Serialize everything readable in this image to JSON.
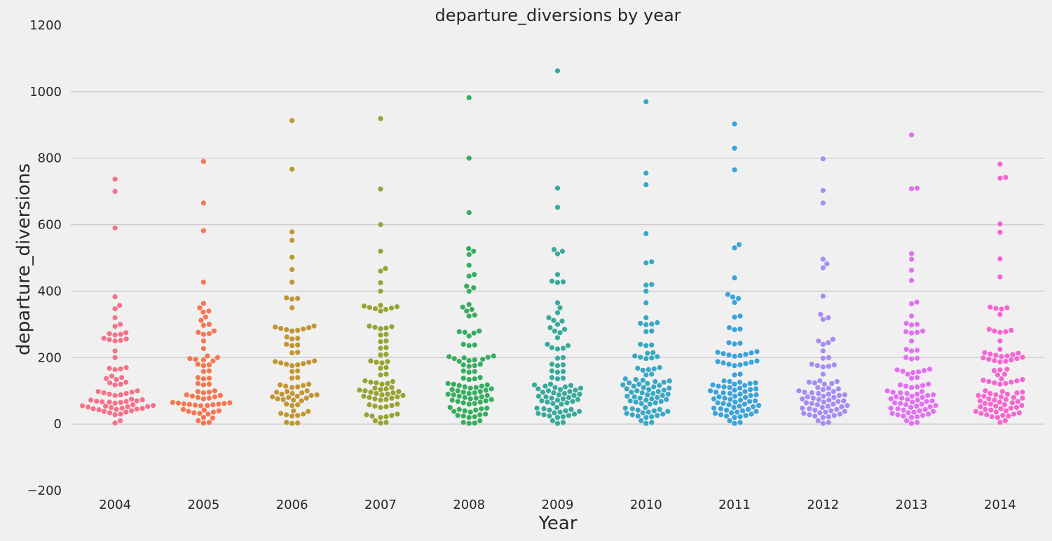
{
  "chart_data": {
    "type": "scatter",
    "subtype": "swarm",
    "title": "departure_diversions by year",
    "xlabel": "Year",
    "ylabel": "departure_diversions",
    "ylim": [
      -200,
      1200
    ],
    "yticks": [
      "−200",
      "0",
      "200",
      "400",
      "600",
      "800",
      "1000",
      "1200"
    ],
    "grid": true,
    "categories": [
      "2004",
      "2005",
      "2006",
      "2007",
      "2008",
      "2009",
      "2010",
      "2011",
      "2012",
      "2013",
      "2014"
    ],
    "colors": [
      "#f77189",
      "#f7754f",
      "#c39532",
      "#97a431",
      "#36ad5f",
      "#37aa9a",
      "#38a7c5",
      "#3aa2dc",
      "#a48cf4",
      "#e36ff4",
      "#f666d0"
    ],
    "series": [
      {
        "name": "2004",
        "values": [
          737,
          700,
          590,
          383,
          357,
          347,
          320,
          300,
          294,
          275,
          272,
          270,
          268,
          258,
          256,
          254,
          252,
          250,
          220,
          200,
          170,
          168,
          166,
          164,
          144,
          140,
          137,
          134,
          126,
          124,
          120,
          118,
          100,
          98,
          96,
          94,
          92,
          90,
          88,
          86,
          75,
          73,
          72,
          70,
          69,
          68,
          67,
          66,
          65,
          63,
          58,
          56,
          55,
          54,
          53,
          52,
          51,
          50,
          48,
          47,
          46,
          45,
          44,
          43,
          40,
          38,
          36,
          34,
          30,
          28,
          10,
          3
        ]
      },
      {
        "name": "2005",
        "values": [
          790,
          665,
          582,
          427,
          363,
          350,
          340,
          337,
          322,
          312,
          300,
          297,
          280,
          276,
          272,
          270,
          250,
          227,
          205,
          200,
          197,
          195,
          193,
          190,
          180,
          178,
          176,
          160,
          158,
          140,
          138,
          136,
          122,
          120,
          118,
          100,
          98,
          96,
          94,
          88,
          86,
          84,
          82,
          80,
          78,
          76,
          65,
          64,
          63,
          62,
          61,
          60,
          59,
          58,
          57,
          56,
          55,
          44,
          42,
          40,
          38,
          36,
          34,
          32,
          30,
          20,
          18,
          10,
          5,
          3
        ]
      },
      {
        "name": "2006",
        "values": [
          913,
          767,
          578,
          553,
          502,
          465,
          427,
          380,
          378,
          376,
          350,
          295,
          292,
          290,
          288,
          286,
          284,
          282,
          280,
          262,
          258,
          256,
          240,
          238,
          236,
          216,
          214,
          190,
          188,
          186,
          184,
          182,
          180,
          178,
          176,
          160,
          158,
          140,
          138,
          120,
          118,
          116,
          114,
          112,
          110,
          100,
          98,
          96,
          94,
          92,
          90,
          88,
          86,
          84,
          82,
          80,
          78,
          76,
          74,
          72,
          70,
          60,
          58,
          56,
          40,
          38,
          32,
          30,
          28,
          26,
          24,
          5,
          3,
          2
        ]
      },
      {
        "name": "2007",
        "values": [
          919,
          707,
          600,
          520,
          468,
          460,
          425,
          400,
          357,
          355,
          353,
          351,
          349,
          347,
          345,
          340,
          295,
          293,
          291,
          289,
          287,
          270,
          268,
          250,
          248,
          230,
          228,
          210,
          208,
          190,
          188,
          186,
          184,
          170,
          168,
          150,
          148,
          130,
          128,
          126,
          124,
          122,
          120,
          110,
          108,
          106,
          104,
          102,
          100,
          98,
          96,
          94,
          92,
          90,
          88,
          86,
          84,
          82,
          80,
          78,
          76,
          74,
          72,
          60,
          58,
          56,
          54,
          52,
          50,
          30,
          28,
          26,
          24,
          22,
          20,
          10,
          5,
          3
        ]
      },
      {
        "name": "2008",
        "values": [
          982,
          800,
          636,
          528,
          520,
          510,
          478,
          450,
          445,
          415,
          410,
          400,
          360,
          352,
          345,
          340,
          328,
          325,
          280,
          278,
          276,
          274,
          265,
          240,
          238,
          236,
          205,
          203,
          201,
          199,
          197,
          195,
          193,
          191,
          189,
          180,
          178,
          176,
          174,
          160,
          158,
          156,
          140,
          138,
          136,
          134,
          122,
          120,
          118,
          116,
          114,
          112,
          110,
          108,
          106,
          104,
          102,
          100,
          98,
          96,
          94,
          92,
          90,
          88,
          86,
          84,
          82,
          80,
          78,
          76,
          74,
          72,
          70,
          68,
          66,
          64,
          62,
          60,
          50,
          48,
          46,
          44,
          42,
          40,
          38,
          36,
          30,
          28,
          26,
          24,
          22,
          20,
          10,
          5,
          3,
          2
        ]
      },
      {
        "name": "2009",
        "values": [
          1063,
          710,
          652,
          525,
          520,
          512,
          450,
          430,
          428,
          426,
          365,
          350,
          335,
          320,
          312,
          310,
          300,
          290,
          285,
          280,
          275,
          260,
          240,
          236,
          230,
          228,
          226,
          200,
          198,
          180,
          178,
          176,
          160,
          158,
          156,
          140,
          138,
          136,
          120,
          118,
          116,
          114,
          112,
          110,
          108,
          106,
          104,
          102,
          100,
          98,
          96,
          94,
          92,
          90,
          88,
          86,
          84,
          82,
          80,
          78,
          76,
          74,
          72,
          70,
          68,
          66,
          64,
          62,
          60,
          50,
          48,
          46,
          44,
          42,
          40,
          38,
          36,
          34,
          32,
          30,
          28,
          26,
          24,
          22,
          20,
          10,
          5,
          2
        ]
      },
      {
        "name": "2010",
        "values": [
          970,
          755,
          720,
          573,
          488,
          485,
          420,
          418,
          400,
          365,
          320,
          305,
          303,
          301,
          299,
          280,
          278,
          240,
          238,
          236,
          215,
          213,
          205,
          203,
          201,
          199,
          197,
          170,
          168,
          166,
          164,
          162,
          150,
          148,
          136,
          134,
          132,
          130,
          128,
          126,
          124,
          122,
          120,
          118,
          116,
          114,
          112,
          110,
          108,
          106,
          104,
          102,
          100,
          98,
          96,
          94,
          92,
          90,
          88,
          86,
          84,
          82,
          80,
          78,
          76,
          74,
          72,
          70,
          68,
          66,
          64,
          62,
          60,
          50,
          48,
          46,
          44,
          42,
          40,
          38,
          36,
          34,
          32,
          30,
          28,
          26,
          24,
          22,
          20,
          10,
          5,
          2
        ]
      },
      {
        "name": "2011",
        "values": [
          903,
          830,
          765,
          540,
          530,
          440,
          390,
          382,
          378,
          366,
          325,
          322,
          290,
          286,
          284,
          245,
          243,
          241,
          218,
          216,
          214,
          212,
          210,
          208,
          206,
          204,
          190,
          188,
          186,
          184,
          182,
          180,
          178,
          176,
          150,
          148,
          130,
          128,
          126,
          124,
          122,
          120,
          118,
          116,
          114,
          112,
          110,
          108,
          106,
          104,
          102,
          100,
          98,
          96,
          94,
          92,
          90,
          88,
          86,
          84,
          82,
          80,
          78,
          76,
          74,
          72,
          70,
          68,
          66,
          64,
          62,
          60,
          58,
          56,
          54,
          52,
          50,
          48,
          46,
          44,
          42,
          40,
          38,
          36,
          34,
          32,
          30,
          28,
          26,
          24,
          22,
          20,
          10,
          5,
          2
        ]
      },
      {
        "name": "2012",
        "values": [
          798,
          703,
          665,
          496,
          482,
          470,
          385,
          330,
          320,
          315,
          255,
          250,
          245,
          240,
          220,
          200,
          198,
          180,
          178,
          176,
          174,
          172,
          150,
          130,
          128,
          126,
          124,
          122,
          120,
          110,
          108,
          106,
          104,
          100,
          98,
          96,
          94,
          92,
          90,
          88,
          86,
          84,
          82,
          80,
          78,
          76,
          74,
          72,
          70,
          68,
          66,
          64,
          62,
          60,
          58,
          56,
          54,
          52,
          50,
          48,
          46,
          44,
          42,
          40,
          38,
          36,
          34,
          32,
          30,
          28,
          26,
          24,
          22,
          20,
          10,
          5,
          2
        ]
      },
      {
        "name": "2013",
        "values": [
          870,
          710,
          708,
          513,
          496,
          463,
          432,
          367,
          362,
          325,
          303,
          300,
          298,
          280,
          278,
          276,
          274,
          250,
          225,
          222,
          220,
          200,
          198,
          196,
          165,
          163,
          161,
          159,
          157,
          155,
          150,
          140,
          138,
          120,
          118,
          116,
          114,
          112,
          110,
          100,
          98,
          96,
          94,
          92,
          90,
          88,
          86,
          84,
          82,
          80,
          78,
          76,
          74,
          72,
          70,
          68,
          66,
          64,
          62,
          60,
          58,
          56,
          54,
          52,
          50,
          48,
          46,
          44,
          42,
          40,
          38,
          36,
          34,
          32,
          30,
          28,
          26,
          24,
          22,
          20,
          10,
          5,
          2
        ]
      },
      {
        "name": "2014",
        "values": [
          782,
          742,
          740,
          602,
          577,
          497,
          443,
          352,
          350,
          348,
          346,
          330,
          285,
          282,
          280,
          278,
          276,
          250,
          225,
          215,
          213,
          211,
          209,
          207,
          205,
          203,
          201,
          199,
          197,
          195,
          193,
          191,
          189,
          187,
          165,
          163,
          161,
          150,
          148,
          136,
          134,
          132,
          130,
          128,
          126,
          124,
          122,
          120,
          100,
          98,
          96,
          94,
          92,
          90,
          88,
          86,
          84,
          82,
          80,
          78,
          76,
          74,
          72,
          70,
          68,
          66,
          64,
          62,
          60,
          58,
          56,
          54,
          52,
          50,
          48,
          46,
          44,
          42,
          40,
          38,
          36,
          34,
          32,
          30,
          28,
          26,
          24,
          22,
          20,
          10,
          5
        ]
      }
    ]
  }
}
